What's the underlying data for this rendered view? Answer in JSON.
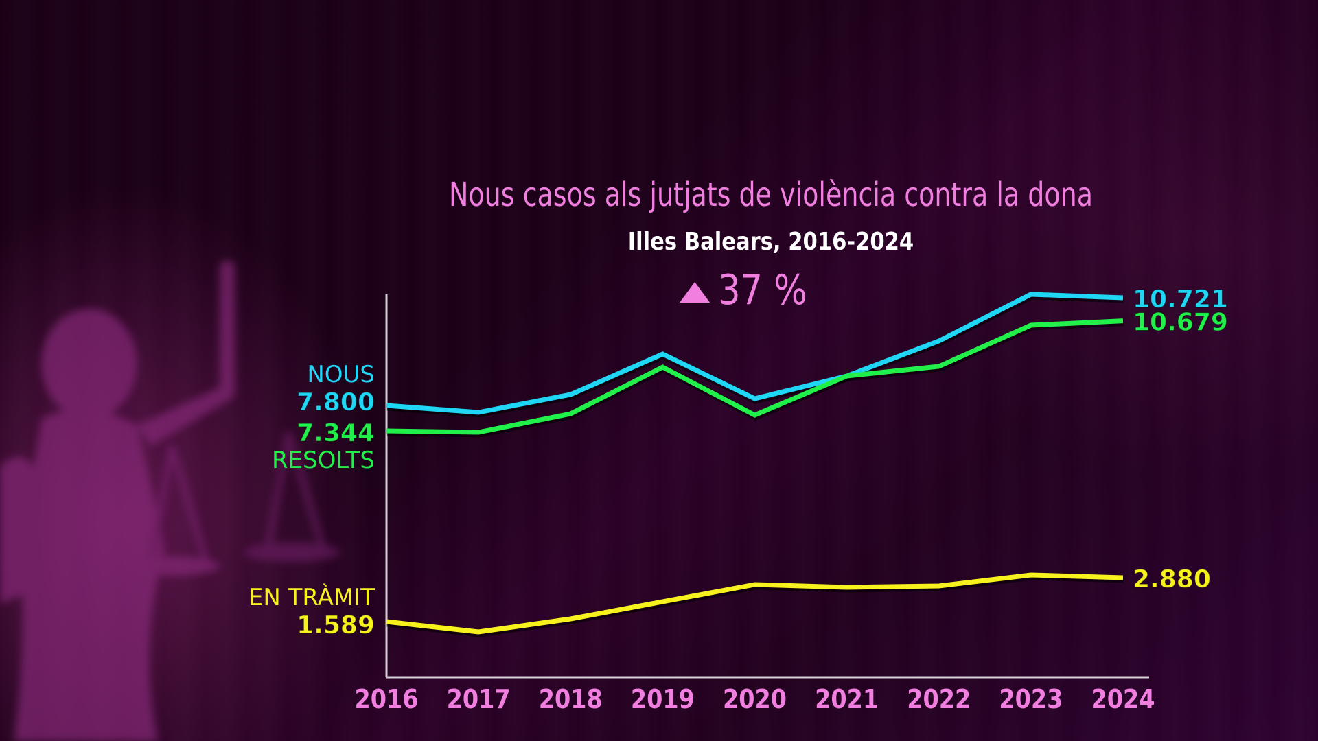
{
  "chart_data": {
    "type": "line",
    "title": "Nous casos als jutjats de violència contra la dona",
    "subtitle": "Illes Balears, 2016-2024",
    "annotation": {
      "icon": "triangle-up-icon",
      "text": "37 %"
    },
    "xlabel": "",
    "ylabel": "",
    "x": [
      "2016",
      "2017",
      "2018",
      "2019",
      "2020",
      "2021",
      "2022",
      "2023",
      "2024"
    ],
    "grid": false,
    "series": [
      {
        "name": "NOUS",
        "color": "#1fd6f5",
        "values": [
          7800,
          7614,
          8098,
          9195,
          7986,
          8600,
          9549,
          10814,
          10721
        ],
        "start_label": "7.800",
        "end_label": "10.721"
      },
      {
        "name": "RESOLTS",
        "color": "#22f04a",
        "values": [
          7344,
          7302,
          7864,
          9278,
          7822,
          9008,
          9299,
          10547,
          10679
        ],
        "start_label": "7.344",
        "end_label": "10.679"
      },
      {
        "name": "EN TRÀMIT",
        "color": "#f7f21e",
        "values": [
          1589,
          1286,
          1670,
          2174,
          2679,
          2598,
          2638,
          2961,
          2880
        ],
        "start_label": "1.589",
        "end_label": "2.880"
      }
    ],
    "ylim": [
      0,
      11000
    ],
    "legend": "inline-left"
  },
  "colors": {
    "title": "#f07fe0",
    "subtitle": "#ffffff",
    "axis": "#d8d0d8",
    "ticks": "#f07fe0"
  }
}
